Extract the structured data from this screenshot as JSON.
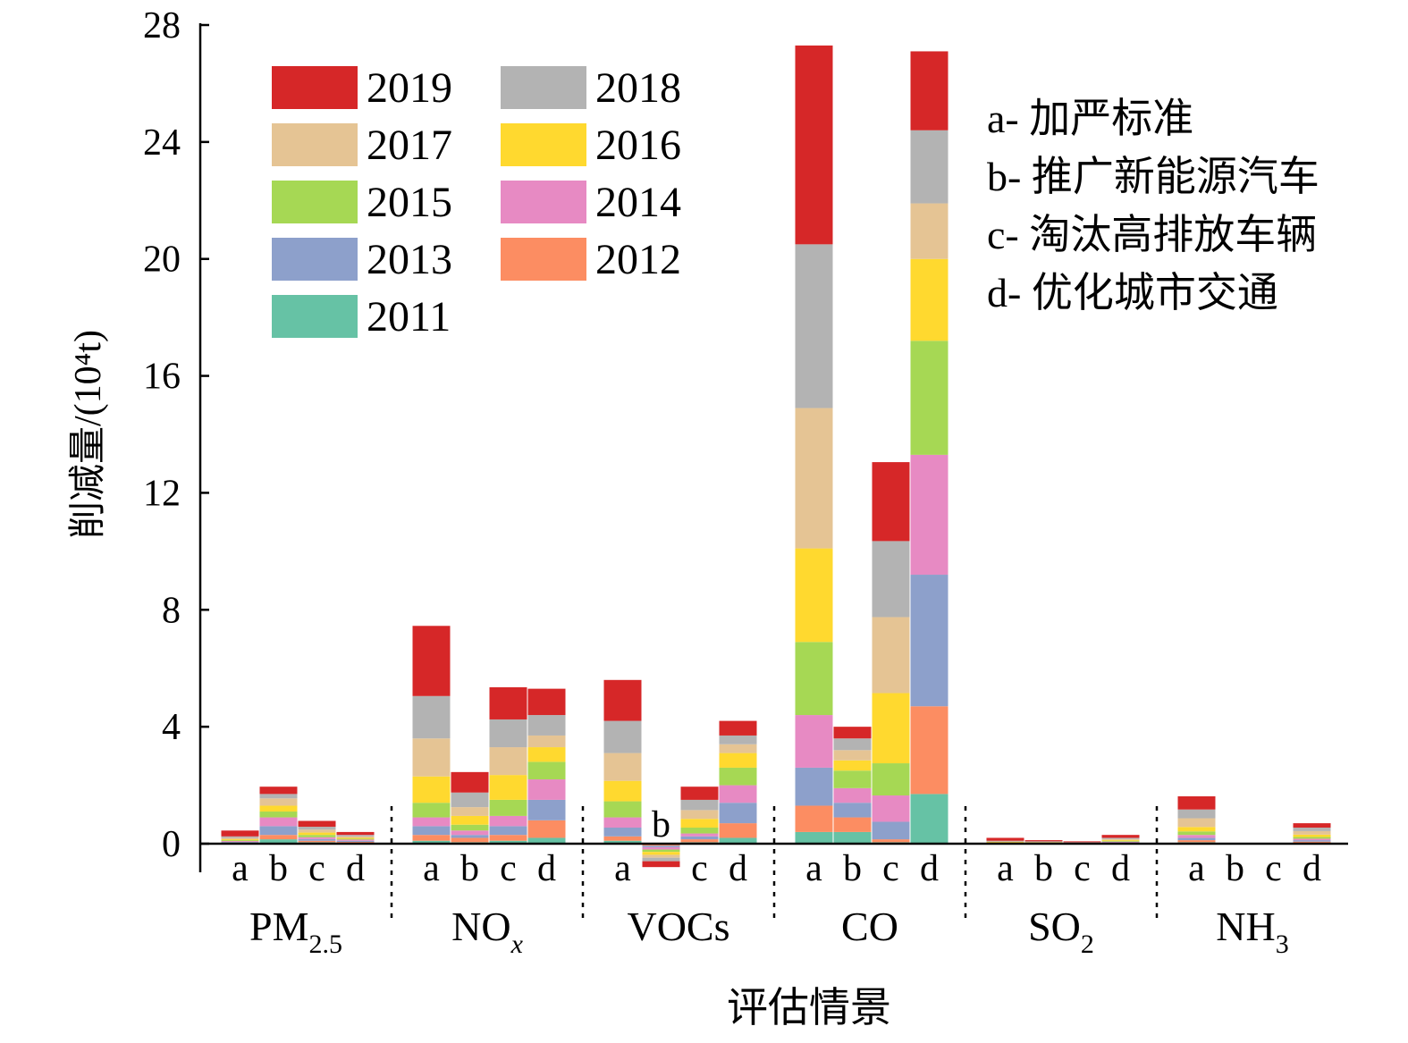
{
  "chart_data": {
    "type": "bar",
    "stacked": true,
    "xlabel": "评估情景",
    "ylabel": "削减量/(10⁴t)",
    "ylim": [
      0,
      28
    ],
    "yticks": [
      "0",
      "4",
      "8",
      "12",
      "16",
      "20",
      "24",
      "28"
    ],
    "grid": false,
    "legend_placement": "top-left",
    "colors": {
      "2011": "#66C2A5",
      "2012": "#FC8D62",
      "2013": "#8DA0CB",
      "2014": "#E78AC3",
      "2015": "#A6D854",
      "2016": "#FFD92F",
      "2017": "#E5C494",
      "2018": "#B3B3B3",
      "2019": "#D62728"
    },
    "legend": [
      {
        "key": "2019",
        "label": "2019"
      },
      {
        "key": "2018",
        "label": "2018"
      },
      {
        "key": "2017",
        "label": "2017"
      },
      {
        "key": "2016",
        "label": "2016"
      },
      {
        "key": "2015",
        "label": "2015"
      },
      {
        "key": "2014",
        "label": "2014"
      },
      {
        "key": "2013",
        "label": "2013"
      },
      {
        "key": "2012",
        "label": "2012"
      },
      {
        "key": "2011",
        "label": "2011"
      }
    ],
    "scenario_notes": [
      "a- 加严标准",
      "b- 推广新能源汽车",
      "c- 淘汰高排放车辆",
      "d- 优化城市交通"
    ],
    "groups": [
      {
        "pollutant": "PM",
        "subscript": "2.5",
        "italic_sub": false,
        "bars": [
          {
            "scenario": "a",
            "segments": {
              "2011": 0.02,
              "2012": 0.02,
              "2013": 0.02,
              "2014": 0.03,
              "2015": 0.03,
              "2016": 0.03,
              "2017": 0.05,
              "2018": 0.05,
              "2019": 0.2
            }
          },
          {
            "scenario": "b",
            "segments": {
              "2011": 0.15,
              "2012": 0.15,
              "2013": 0.3,
              "2014": 0.3,
              "2015": 0.2,
              "2016": 0.2,
              "2017": 0.25,
              "2018": 0.15,
              "2019": 0.25
            }
          },
          {
            "scenario": "c",
            "segments": {
              "2011": 0.05,
              "2012": 0.05,
              "2013": 0.06,
              "2014": 0.06,
              "2015": 0.08,
              "2016": 0.08,
              "2017": 0.1,
              "2018": 0.1,
              "2019": 0.2
            }
          },
          {
            "scenario": "d",
            "segments": {
              "2011": 0.03,
              "2012": 0.03,
              "2013": 0.04,
              "2014": 0.04,
              "2015": 0.03,
              "2016": 0.03,
              "2017": 0.05,
              "2018": 0.05,
              "2019": 0.1
            }
          }
        ]
      },
      {
        "pollutant": "NO",
        "subscript": "x",
        "italic_sub": true,
        "bars": [
          {
            "scenario": "a",
            "segments": {
              "2011": 0.1,
              "2012": 0.2,
              "2013": 0.3,
              "2014": 0.3,
              "2015": 0.5,
              "2016": 0.9,
              "2017": 1.3,
              "2018": 1.45,
              "2019": 2.4
            }
          },
          {
            "scenario": "b",
            "segments": {
              "2011": 0.05,
              "2012": 0.15,
              "2013": 0.1,
              "2014": 0.15,
              "2015": 0.2,
              "2016": 0.3,
              "2017": 0.3,
              "2018": 0.5,
              "2019": 0.7
            }
          },
          {
            "scenario": "c",
            "segments": {
              "2011": 0.1,
              "2012": 0.2,
              "2013": 0.3,
              "2014": 0.35,
              "2015": 0.55,
              "2016": 0.85,
              "2017": 0.95,
              "2018": 0.95,
              "2019": 1.1
            }
          },
          {
            "scenario": "d",
            "segments": {
              "2011": 0.2,
              "2012": 0.6,
              "2013": 0.7,
              "2014": 0.7,
              "2015": 0.6,
              "2016": 0.5,
              "2017": 0.4,
              "2018": 0.7,
              "2019": 0.9
            }
          }
        ]
      },
      {
        "pollutant": "VOCs",
        "subscript": "",
        "italic_sub": false,
        "bars": [
          {
            "scenario": "a",
            "segments": {
              "2011": 0.1,
              "2012": 0.15,
              "2013": 0.3,
              "2014": 0.35,
              "2015": 0.55,
              "2016": 0.7,
              "2017": 0.95,
              "2018": 1.1,
              "2019": 1.4
            }
          },
          {
            "scenario": "b",
            "segments": {
              "2011": -0.02,
              "2012": -0.05,
              "2013": -0.05,
              "2014": -0.08,
              "2015": -0.08,
              "2016": -0.1,
              "2017": -0.1,
              "2018": -0.12,
              "2019": -0.2
            }
          },
          {
            "scenario": "c",
            "segments": {
              "2011": 0.05,
              "2012": 0.1,
              "2013": 0.1,
              "2014": 0.1,
              "2015": 0.2,
              "2016": 0.3,
              "2017": 0.3,
              "2018": 0.35,
              "2019": 0.45
            }
          },
          {
            "scenario": "d",
            "segments": {
              "2011": 0.2,
              "2012": 0.5,
              "2013": 0.7,
              "2014": 0.6,
              "2015": 0.6,
              "2016": 0.5,
              "2017": 0.3,
              "2018": 0.3,
              "2019": 0.5
            }
          }
        ]
      },
      {
        "pollutant": "CO",
        "subscript": "",
        "italic_sub": false,
        "bars": [
          {
            "scenario": "a",
            "segments": {
              "2011": 0.4,
              "2012": 0.9,
              "2013": 1.3,
              "2014": 1.8,
              "2015": 2.5,
              "2016": 3.2,
              "2017": 4.8,
              "2018": 5.6,
              "2019": 6.8
            }
          },
          {
            "scenario": "b",
            "segments": {
              "2011": 0.4,
              "2012": 0.5,
              "2013": 0.5,
              "2014": 0.5,
              "2015": 0.6,
              "2016": 0.35,
              "2017": 0.35,
              "2018": 0.4,
              "2019": 0.4
            }
          },
          {
            "scenario": "c",
            "segments": {
              "2011": 0.05,
              "2012": 0.1,
              "2013": 0.6,
              "2014": 0.9,
              "2015": 1.1,
              "2016": 2.4,
              "2017": 2.6,
              "2018": 2.6,
              "2019": 2.7
            }
          },
          {
            "scenario": "d",
            "segments": {
              "2011": 1.7,
              "2012": 3.0,
              "2013": 4.5,
              "2014": 4.1,
              "2015": 3.9,
              "2016": 2.8,
              "2017": 1.9,
              "2018": 2.5,
              "2019": 2.7
            }
          }
        ]
      },
      {
        "pollutant": "SO",
        "subscript": "2",
        "italic_sub": false,
        "bars": [
          {
            "scenario": "a",
            "segments": {
              "2011": 0.01,
              "2012": 0.01,
              "2013": 0.01,
              "2014": 0.01,
              "2015": 0.01,
              "2016": 0.01,
              "2017": 0.02,
              "2018": 0.02,
              "2019": 0.1
            }
          },
          {
            "scenario": "b",
            "segments": {
              "2011": 0.01,
              "2012": 0.01,
              "2013": 0.01,
              "2014": 0.01,
              "2015": 0.01,
              "2016": 0.01,
              "2017": 0.01,
              "2018": 0.01,
              "2019": 0.04
            }
          },
          {
            "scenario": "c",
            "segments": {
              "2011": 0.0,
              "2012": 0.01,
              "2013": 0.01,
              "2014": 0.0,
              "2015": 0.0,
              "2016": 0.01,
              "2017": 0.01,
              "2018": 0.01,
              "2019": 0.03
            }
          },
          {
            "scenario": "d",
            "segments": {
              "2011": 0.01,
              "2012": 0.02,
              "2013": 0.02,
              "2014": 0.02,
              "2015": 0.03,
              "2016": 0.03,
              "2017": 0.03,
              "2018": 0.04,
              "2019": 0.1
            }
          }
        ]
      },
      {
        "pollutant": "NH",
        "subscript": "3",
        "italic_sub": false,
        "bars": [
          {
            "scenario": "a",
            "segments": {
              "2011": 0.05,
              "2012": 0.07,
              "2013": 0.08,
              "2014": 0.1,
              "2015": 0.12,
              "2016": 0.15,
              "2017": 0.3,
              "2018": 0.3,
              "2019": 0.45
            }
          },
          {
            "scenario": "b",
            "segments": {
              "2011": 0.0,
              "2012": 0.0,
              "2013": 0.0,
              "2014": 0.0,
              "2015": 0.0,
              "2016": 0.0,
              "2017": 0.0,
              "2018": 0.0,
              "2019": 0.03
            }
          },
          {
            "scenario": "c",
            "segments": {
              "2011": 0.0,
              "2012": 0.0,
              "2013": 0.0,
              "2014": 0.0,
              "2015": 0.0,
              "2016": 0.0,
              "2017": 0.0,
              "2018": 0.0,
              "2019": 0.03
            }
          },
          {
            "scenario": "d",
            "segments": {
              "2011": 0.03,
              "2012": 0.04,
              "2013": 0.05,
              "2014": 0.05,
              "2015": 0.06,
              "2016": 0.08,
              "2017": 0.12,
              "2018": 0.12,
              "2019": 0.15
            }
          }
        ]
      }
    ]
  }
}
